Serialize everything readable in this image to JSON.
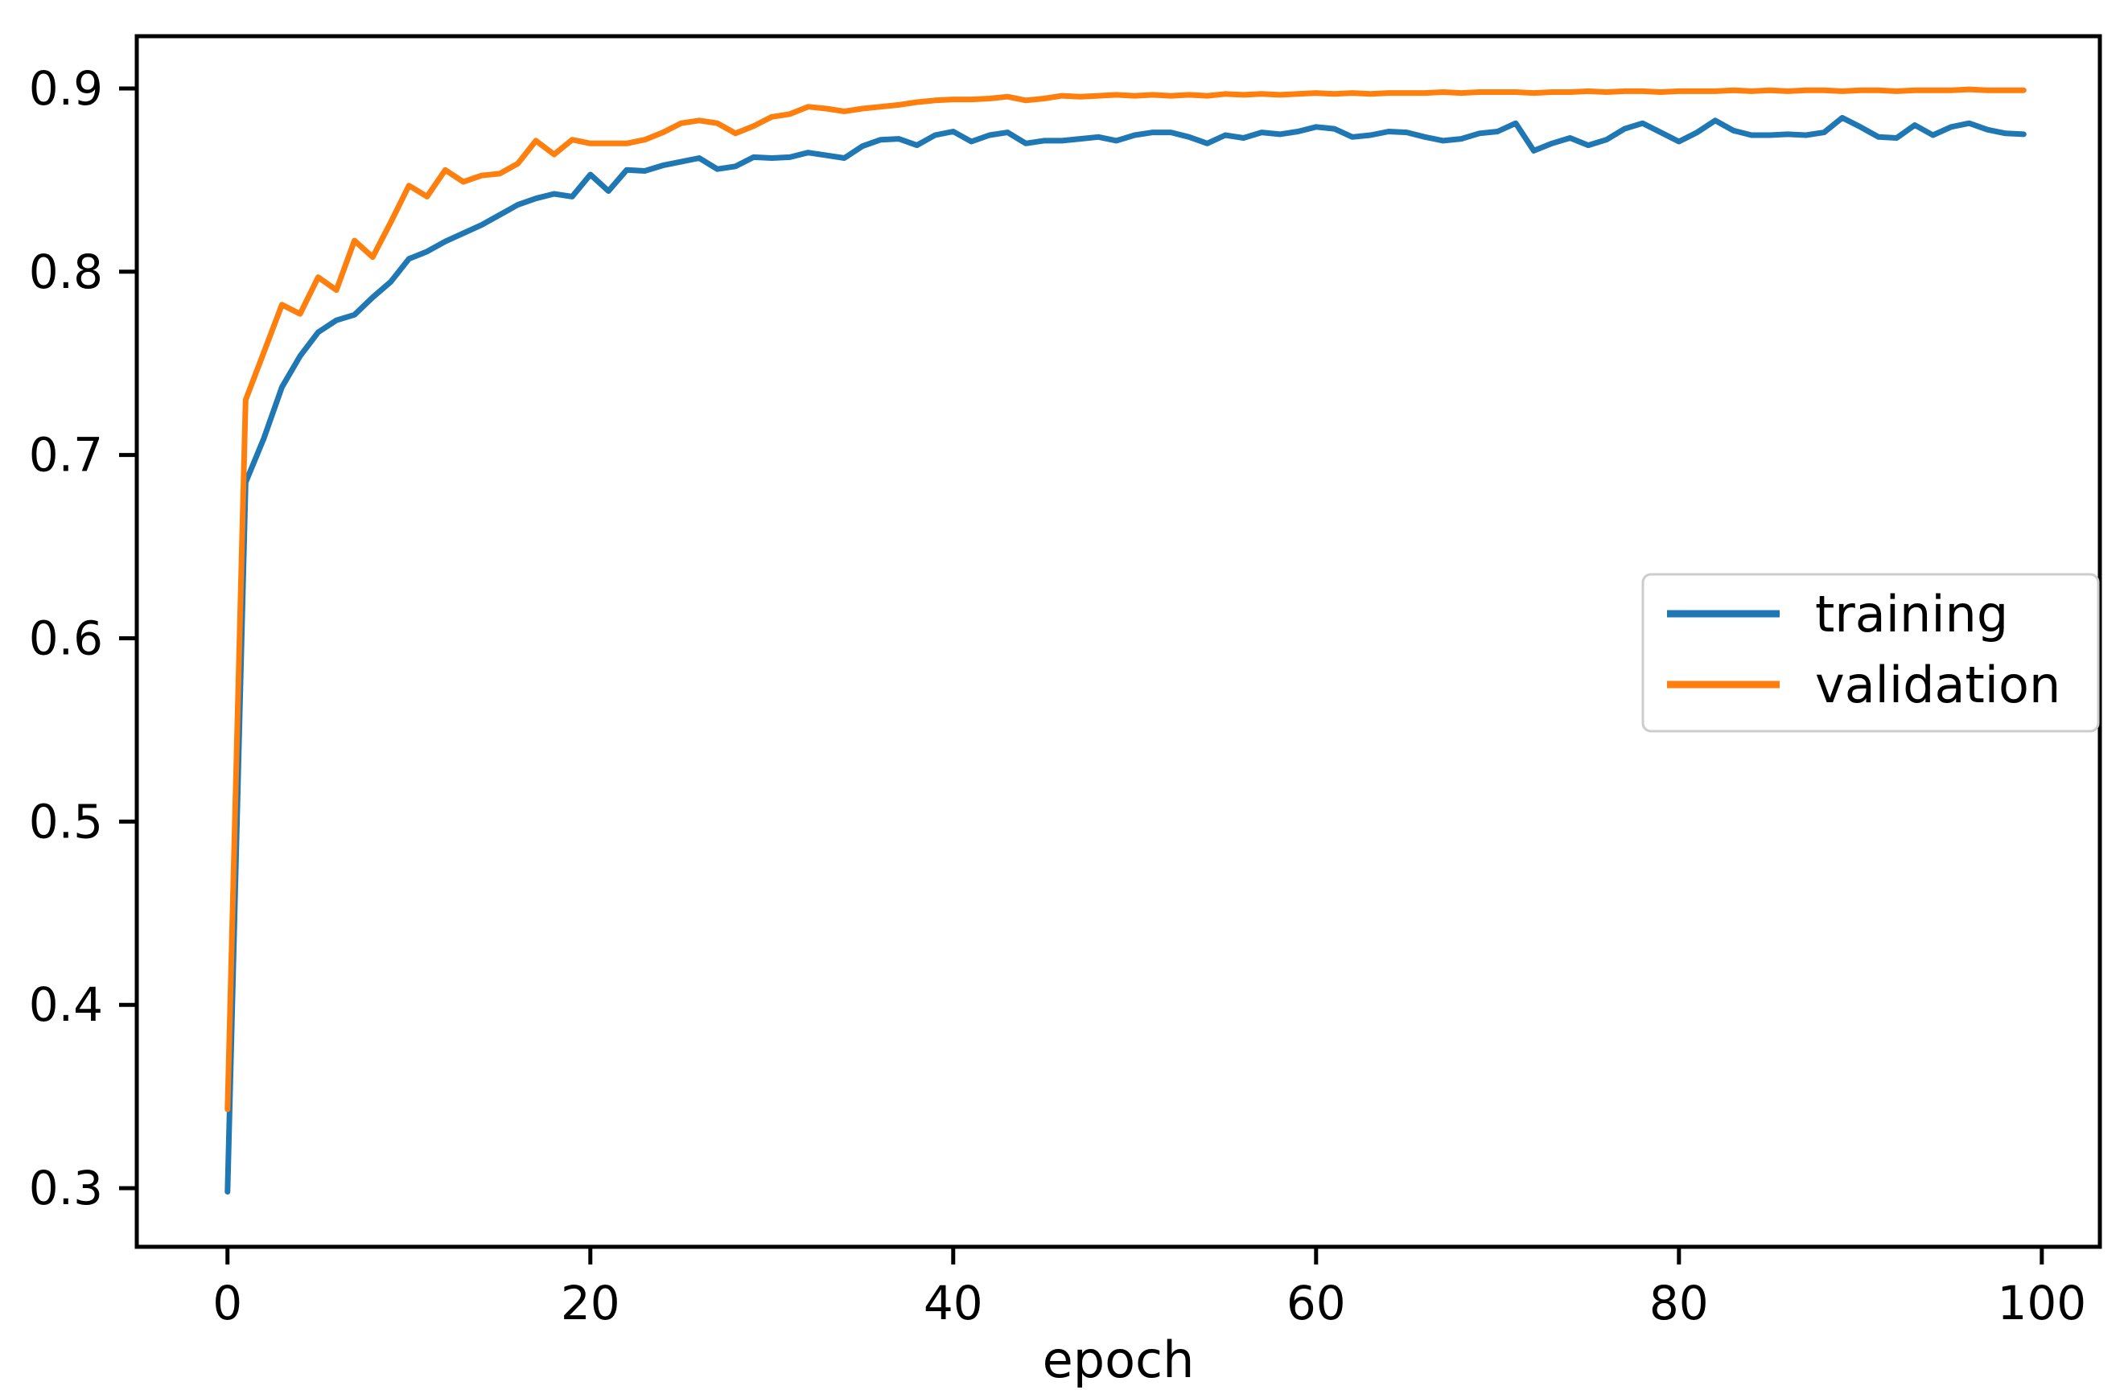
{
  "figure": {
    "background": "#ffffff",
    "plot_border_color": "#000000"
  },
  "chart_data": {
    "type": "line",
    "title": "",
    "xlabel": "epoch",
    "ylabel": "",
    "grid": false,
    "legend_position": "center right",
    "x_ticks": [
      0,
      20,
      40,
      60,
      80,
      100
    ],
    "y_ticks": [
      0.3,
      0.4,
      0.5,
      0.6,
      0.7,
      0.8,
      0.9
    ],
    "xlim": [
      -5.0,
      103.2
    ],
    "ylim": [
      0.268,
      0.9285
    ],
    "x": [
      0,
      1,
      2,
      3,
      4,
      5,
      6,
      7,
      8,
      9,
      10,
      11,
      12,
      13,
      14,
      15,
      16,
      17,
      18,
      19,
      20,
      21,
      22,
      23,
      24,
      25,
      26,
      27,
      28,
      29,
      30,
      31,
      32,
      33,
      34,
      35,
      36,
      37,
      38,
      39,
      40,
      41,
      42,
      43,
      44,
      45,
      46,
      47,
      48,
      49,
      50,
      51,
      52,
      53,
      54,
      55,
      56,
      57,
      58,
      59,
      60,
      61,
      62,
      63,
      64,
      65,
      66,
      67,
      68,
      69,
      70,
      71,
      72,
      73,
      74,
      75,
      76,
      77,
      78,
      79,
      80,
      81,
      82,
      83,
      84,
      85,
      86,
      87,
      88,
      89,
      90,
      91,
      92,
      93,
      94,
      95,
      96,
      97,
      98,
      99
    ],
    "series": [
      {
        "name": "training",
        "color": "#1f77b4",
        "values": [
          0.298,
          0.685,
          0.709,
          0.737,
          0.754,
          0.767,
          0.7735,
          0.7765,
          0.786,
          0.7945,
          0.807,
          0.811,
          0.8165,
          0.821,
          0.8255,
          0.831,
          0.8365,
          0.84,
          0.8425,
          0.841,
          0.853,
          0.844,
          0.8555,
          0.855,
          0.858,
          0.86,
          0.862,
          0.856,
          0.8575,
          0.8625,
          0.862,
          0.8625,
          0.865,
          0.8635,
          0.862,
          0.8685,
          0.872,
          0.8725,
          0.869,
          0.8745,
          0.8765,
          0.871,
          0.8745,
          0.876,
          0.87,
          0.8715,
          0.8715,
          0.8725,
          0.8735,
          0.8715,
          0.8745,
          0.876,
          0.876,
          0.8735,
          0.87,
          0.8745,
          0.873,
          0.876,
          0.875,
          0.8765,
          0.879,
          0.878,
          0.8735,
          0.8745,
          0.8765,
          0.876,
          0.8735,
          0.8715,
          0.8725,
          0.8755,
          0.8765,
          0.881,
          0.866,
          0.87,
          0.873,
          0.869,
          0.872,
          0.878,
          0.881,
          0.876,
          0.871,
          0.876,
          0.8825,
          0.877,
          0.8745,
          0.8745,
          0.875,
          0.8745,
          0.876,
          0.884,
          0.879,
          0.8735,
          0.873,
          0.88,
          0.8745,
          0.879,
          0.881,
          0.8775,
          0.8755,
          0.875
        ]
      },
      {
        "name": "validation",
        "color": "#ff7f0e",
        "values": [
          0.343,
          0.73,
          0.756,
          0.782,
          0.777,
          0.797,
          0.79,
          0.817,
          0.808,
          0.827,
          0.847,
          0.841,
          0.8555,
          0.849,
          0.8525,
          0.8535,
          0.859,
          0.8715,
          0.864,
          0.872,
          0.87,
          0.87,
          0.87,
          0.872,
          0.876,
          0.881,
          0.8825,
          0.881,
          0.8755,
          0.8795,
          0.8845,
          0.886,
          0.89,
          0.889,
          0.8875,
          0.889,
          0.89,
          0.891,
          0.8925,
          0.8935,
          0.894,
          0.894,
          0.8945,
          0.8955,
          0.8935,
          0.8945,
          0.896,
          0.8955,
          0.896,
          0.8965,
          0.896,
          0.8965,
          0.896,
          0.8965,
          0.896,
          0.897,
          0.8965,
          0.897,
          0.8965,
          0.897,
          0.8975,
          0.897,
          0.8975,
          0.897,
          0.8975,
          0.8975,
          0.8975,
          0.898,
          0.8975,
          0.898,
          0.898,
          0.898,
          0.8975,
          0.898,
          0.898,
          0.8985,
          0.898,
          0.8985,
          0.8985,
          0.898,
          0.8985,
          0.8985,
          0.8985,
          0.899,
          0.8985,
          0.899,
          0.8985,
          0.899,
          0.899,
          0.8985,
          0.899,
          0.899,
          0.8985,
          0.899,
          0.899,
          0.899,
          0.8995,
          0.899,
          0.899,
          0.899
        ]
      }
    ]
  },
  "legend": {
    "border_color": "#cccccc",
    "background": "#ffffff"
  }
}
